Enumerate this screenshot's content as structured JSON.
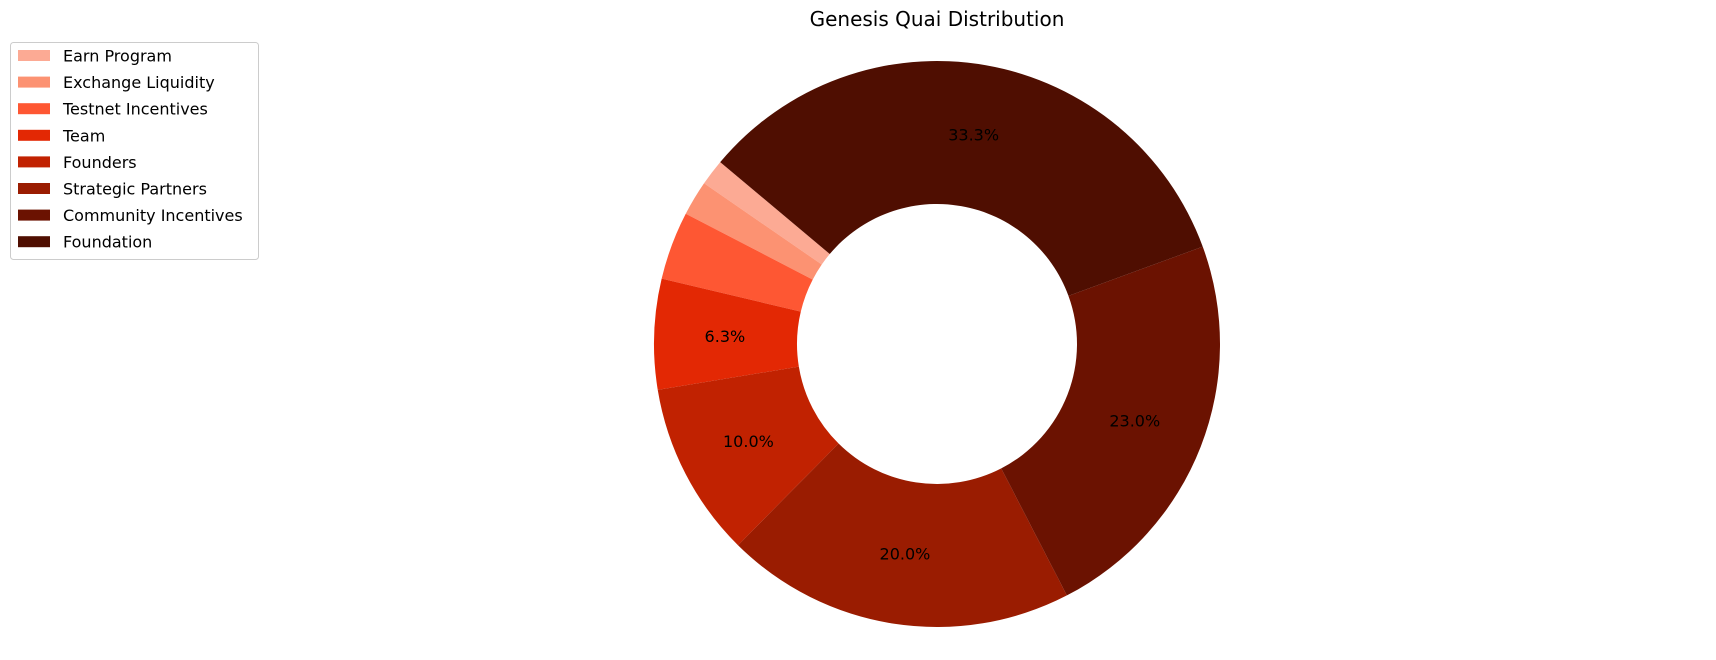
{
  "chart_data": {
    "type": "pie",
    "title": "Genesis Quai Distribution",
    "donut": true,
    "legend_position": "upper-left",
    "slices": [
      {
        "label": "Earn Program",
        "value": 1.5,
        "color": "#fcaa94",
        "pct_label": ""
      },
      {
        "label": "Exchange Liquidity",
        "value": 2.0,
        "color": "#fc9272",
        "pct_label": ""
      },
      {
        "label": "Testnet Incentives",
        "value": 3.9,
        "color": "#fe5733",
        "pct_label": ""
      },
      {
        "label": "Team",
        "value": 6.3,
        "color": "#e32804",
        "pct_label": "6.3%"
      },
      {
        "label": "Founders",
        "value": 10.0,
        "color": "#c12201",
        "pct_label": "10.0%"
      },
      {
        "label": "Strategic Partners",
        "value": 20.0,
        "color": "#9a1c01",
        "pct_label": "20.0%"
      },
      {
        "label": "Community Incentives",
        "value": 23.0,
        "color": "#6b1201",
        "pct_label": "23.0%"
      },
      {
        "label": "Foundation",
        "value": 33.3,
        "color": "#4f0e01",
        "pct_label": "33.3%"
      }
    ]
  }
}
